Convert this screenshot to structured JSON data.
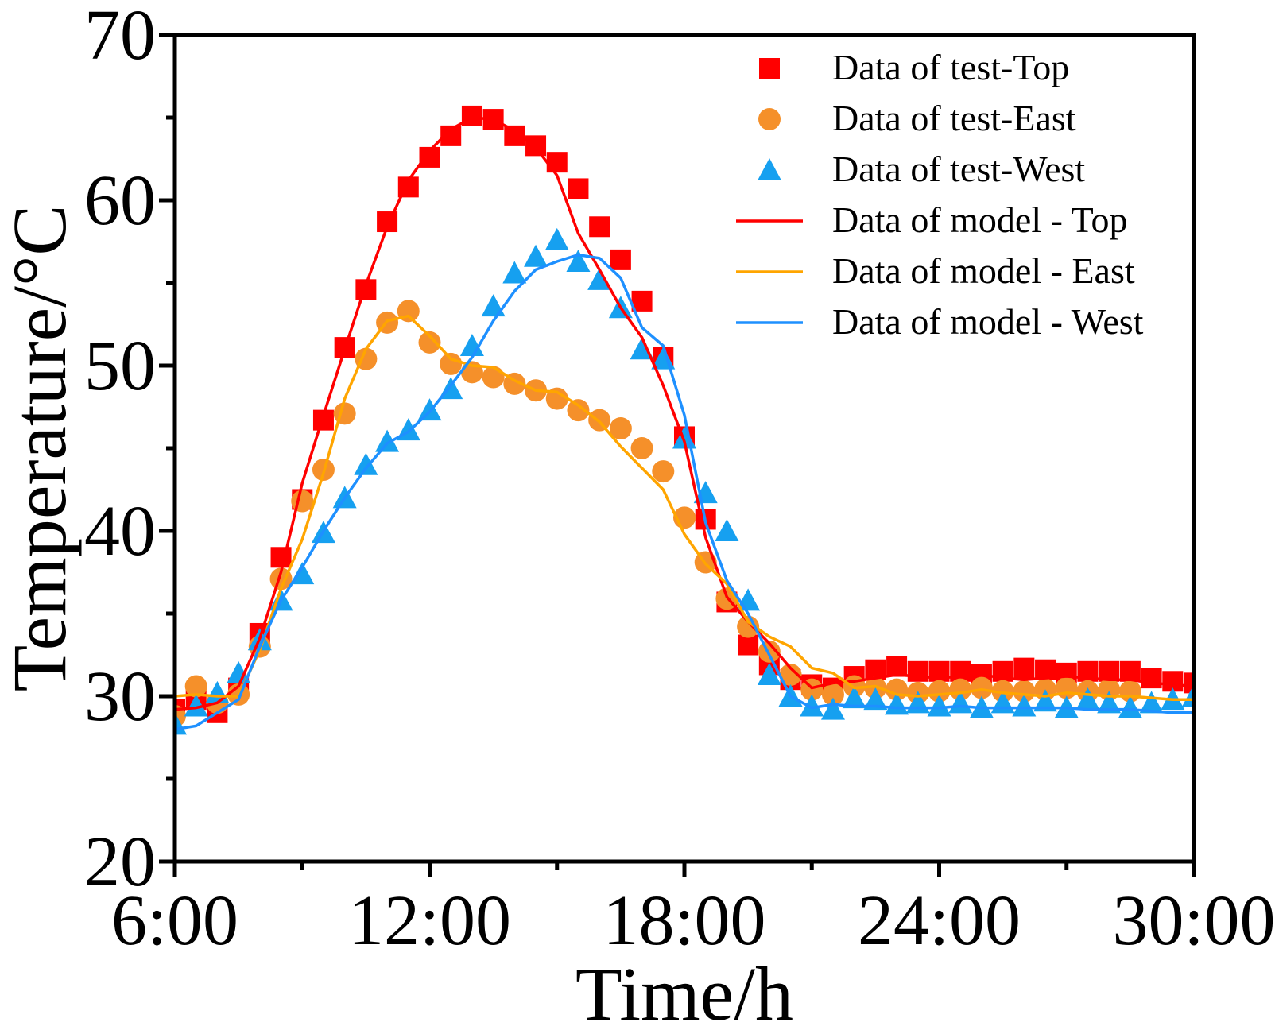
{
  "chart_data": {
    "type": "scatter",
    "xlabel": "Time/h",
    "ylabel": "Temperature/°C",
    "xlim": [
      6,
      30
    ],
    "ylim": [
      20,
      70
    ],
    "xticks": [
      6,
      12,
      18,
      24,
      30
    ],
    "xtick_labels": [
      "6:00",
      "12:00",
      "18:00",
      "24:00",
      "30:00"
    ],
    "yticks": [
      20,
      30,
      40,
      50,
      60,
      70
    ],
    "ytick_labels": [
      "20",
      "30",
      "40",
      "50",
      "60",
      "70"
    ],
    "legend_position": "top-right",
    "colors": {
      "top": "#ff0000",
      "east": "#ffa500",
      "west": "#1e90ff",
      "east_marker": "#f5902a",
      "west_marker": "#16a0f0"
    },
    "series": [
      {
        "name": "Data of test-Top",
        "kind": "marker",
        "marker": "square",
        "color": "#ff0000",
        "x": [
          6.0,
          6.5,
          7.0,
          7.5,
          8.0,
          8.5,
          9.0,
          9.5,
          10.0,
          10.5,
          11.0,
          11.5,
          12.0,
          12.5,
          13.0,
          13.5,
          14.0,
          14.5,
          15.0,
          15.5,
          16.0,
          16.5,
          17.0,
          17.5,
          18.0,
          18.5,
          19.0,
          19.5,
          20.0,
          20.5,
          21.0,
          21.5,
          22.0,
          22.5,
          23.0,
          23.5,
          24.0,
          24.5,
          25.0,
          25.5,
          26.0,
          26.5,
          27.0,
          27.5,
          28.0,
          28.5,
          29.0,
          29.5,
          30.0
        ],
        "y": [
          29.2,
          29.8,
          29.0,
          30.5,
          33.8,
          38.4,
          41.9,
          46.7,
          51.1,
          54.6,
          58.7,
          60.8,
          62.6,
          63.9,
          65.1,
          64.9,
          63.9,
          63.3,
          62.3,
          60.7,
          58.4,
          56.4,
          53.9,
          50.5,
          45.7,
          40.7,
          35.7,
          33.1,
          31.9,
          31.0,
          30.7,
          30.5,
          31.2,
          31.6,
          31.8,
          31.5,
          31.5,
          31.5,
          31.3,
          31.5,
          31.7,
          31.6,
          31.4,
          31.5,
          31.5,
          31.5,
          31.1,
          30.9,
          30.8
        ]
      },
      {
        "name": "Data of test-East",
        "kind": "marker",
        "marker": "circle",
        "color": "#f5902a",
        "x": [
          6.0,
          6.5,
          7.0,
          7.5,
          8.0,
          8.5,
          9.0,
          9.5,
          10.0,
          10.5,
          11.0,
          11.5,
          12.0,
          12.5,
          13.0,
          13.5,
          14.0,
          14.5,
          15.0,
          15.5,
          16.0,
          16.5,
          17.0,
          17.5,
          18.0,
          18.5,
          19.0,
          19.5,
          20.0,
          20.5,
          21.0,
          21.5,
          22.0,
          22.5,
          23.0,
          23.5,
          24.0,
          24.5,
          25.0,
          25.5,
          26.0,
          26.5,
          27.0,
          27.5,
          28.0,
          28.5
        ],
        "y": [
          28.8,
          30.6,
          29.6,
          30.1,
          33.0,
          37.1,
          41.8,
          43.7,
          47.1,
          50.4,
          52.6,
          53.3,
          51.4,
          50.1,
          49.6,
          49.3,
          48.9,
          48.5,
          48.0,
          47.3,
          46.7,
          46.2,
          45.0,
          43.6,
          40.8,
          38.1,
          35.9,
          34.2,
          32.7,
          31.3,
          30.4,
          30.1,
          30.6,
          30.5,
          30.4,
          30.2,
          30.3,
          30.4,
          30.5,
          30.3,
          30.3,
          30.4,
          30.5,
          30.3,
          30.4,
          30.3
        ]
      },
      {
        "name": "Data of test-West",
        "kind": "marker",
        "marker": "triangle",
        "color": "#16a0f0",
        "x": [
          6.0,
          6.5,
          7.0,
          7.5,
          8.0,
          8.5,
          9.0,
          9.5,
          10.0,
          10.5,
          11.0,
          11.5,
          12.0,
          12.5,
          13.0,
          13.5,
          14.0,
          14.5,
          15.0,
          15.5,
          16.0,
          16.5,
          17.0,
          17.5,
          18.0,
          18.5,
          19.0,
          19.5,
          20.0,
          20.5,
          21.0,
          21.5,
          22.0,
          22.5,
          23.0,
          23.5,
          24.0,
          24.5,
          25.0,
          25.5,
          26.0,
          26.5,
          27.0,
          27.5,
          28.0,
          28.5,
          29.0,
          29.5,
          30.0
        ],
        "y": [
          28.3,
          29.4,
          30.2,
          31.4,
          33.4,
          35.8,
          37.4,
          39.9,
          42.0,
          44.0,
          45.4,
          46.1,
          47.3,
          48.6,
          51.2,
          53.6,
          55.6,
          56.6,
          57.6,
          56.3,
          55.2,
          53.5,
          51.0,
          50.4,
          45.6,
          42.3,
          40.0,
          35.8,
          31.3,
          30.0,
          29.4,
          29.2,
          29.9,
          29.8,
          29.5,
          29.6,
          29.4,
          29.6,
          29.3,
          29.6,
          29.4,
          29.7,
          29.3,
          29.8,
          29.6,
          29.3,
          29.6,
          29.8,
          30.0
        ]
      },
      {
        "name": "Data of model - Top",
        "kind": "line",
        "color": "#ff0000",
        "x": [
          6.0,
          6.5,
          7.0,
          7.5,
          8.0,
          8.5,
          9.0,
          9.5,
          10.0,
          10.5,
          11.0,
          11.5,
          12.0,
          12.5,
          13.0,
          13.5,
          14.0,
          14.5,
          15.0,
          15.5,
          16.0,
          16.5,
          17.0,
          17.5,
          18.0,
          18.5,
          19.0,
          19.5,
          20.0,
          20.5,
          21.0,
          21.5,
          22.0,
          22.5,
          23.0,
          23.5,
          24.0,
          24.5,
          25.0,
          25.5,
          26.0,
          26.5,
          27.0,
          27.5,
          28.0,
          28.5,
          29.0,
          29.5,
          30.0
        ],
        "y": [
          29.2,
          29.3,
          29.6,
          30.6,
          33.5,
          37.5,
          42.9,
          47.0,
          51.0,
          54.9,
          58.4,
          61.2,
          63.0,
          64.3,
          65.0,
          64.9,
          64.2,
          63.2,
          61.5,
          58.0,
          55.8,
          53.5,
          51.7,
          48.8,
          45.4,
          39.6,
          36.0,
          34.5,
          33.2,
          31.7,
          30.5,
          30.8,
          30.9,
          31.1,
          31.3,
          31.2,
          31.1,
          31.2,
          31.3,
          31.1,
          31.0,
          31.1,
          31.2,
          31.1,
          31.0,
          31.0,
          30.8,
          30.7,
          30.6
        ]
      },
      {
        "name": "Data of model - East",
        "kind": "line",
        "color": "#ffa500",
        "x": [
          6.0,
          6.5,
          7.0,
          7.5,
          8.0,
          8.5,
          9.0,
          9.5,
          10.0,
          10.5,
          11.0,
          11.5,
          12.0,
          12.5,
          13.0,
          13.5,
          14.0,
          14.5,
          15.0,
          15.5,
          16.0,
          16.5,
          17.0,
          17.5,
          18.0,
          18.5,
          19.0,
          19.5,
          20.0,
          20.5,
          21.0,
          21.5,
          22.0,
          22.5,
          23.0,
          23.5,
          24.0,
          24.5,
          25.0,
          25.5,
          26.0,
          26.5,
          27.0,
          27.5,
          28.0,
          28.5,
          29.0,
          29.5,
          30.0
        ],
        "y": [
          30.0,
          30.1,
          30.0,
          30.0,
          32.8,
          36.5,
          39.5,
          43.5,
          48.0,
          51.0,
          52.7,
          53.0,
          51.8,
          50.4,
          50.0,
          49.9,
          49.1,
          48.5,
          48.4,
          47.6,
          46.6,
          45.1,
          43.8,
          42.5,
          39.8,
          38.0,
          36.8,
          34.5,
          33.6,
          33.0,
          31.7,
          31.4,
          30.5,
          30.6,
          30.1,
          30.0,
          30.1,
          30.2,
          30.4,
          30.2,
          30.1,
          30.0,
          30.2,
          30.1,
          30.0,
          30.0,
          29.9,
          29.8,
          29.8
        ]
      },
      {
        "name": "Data of model - West",
        "kind": "line",
        "color": "#1e90ff",
        "x": [
          6.0,
          6.5,
          7.0,
          7.5,
          8.0,
          8.5,
          9.0,
          9.5,
          10.0,
          10.5,
          11.0,
          11.5,
          12.0,
          12.5,
          13.0,
          13.5,
          14.0,
          14.5,
          15.0,
          15.5,
          16.0,
          16.5,
          17.0,
          17.5,
          18.0,
          18.5,
          19.0,
          19.5,
          20.0,
          20.5,
          21.0,
          21.5,
          22.0,
          22.5,
          23.0,
          23.5,
          24.0,
          24.5,
          25.0,
          25.5,
          26.0,
          26.5,
          27.0,
          27.5,
          28.0,
          28.5,
          29.0,
          29.5,
          30.0
        ],
        "y": [
          28.0,
          28.2,
          29.0,
          29.8,
          33.0,
          35.8,
          37.8,
          40.0,
          42.0,
          43.8,
          45.3,
          46.0,
          47.2,
          48.8,
          50.5,
          52.7,
          54.5,
          55.8,
          56.3,
          56.7,
          56.5,
          55.3,
          52.3,
          51.2,
          47.0,
          40.5,
          37.0,
          35.0,
          32.5,
          30.0,
          29.3,
          29.5,
          29.4,
          29.4,
          29.3,
          29.3,
          29.3,
          29.4,
          29.3,
          29.3,
          29.3,
          29.3,
          29.3,
          29.2,
          29.2,
          29.2,
          29.1,
          29.0,
          29.0
        ]
      }
    ]
  }
}
